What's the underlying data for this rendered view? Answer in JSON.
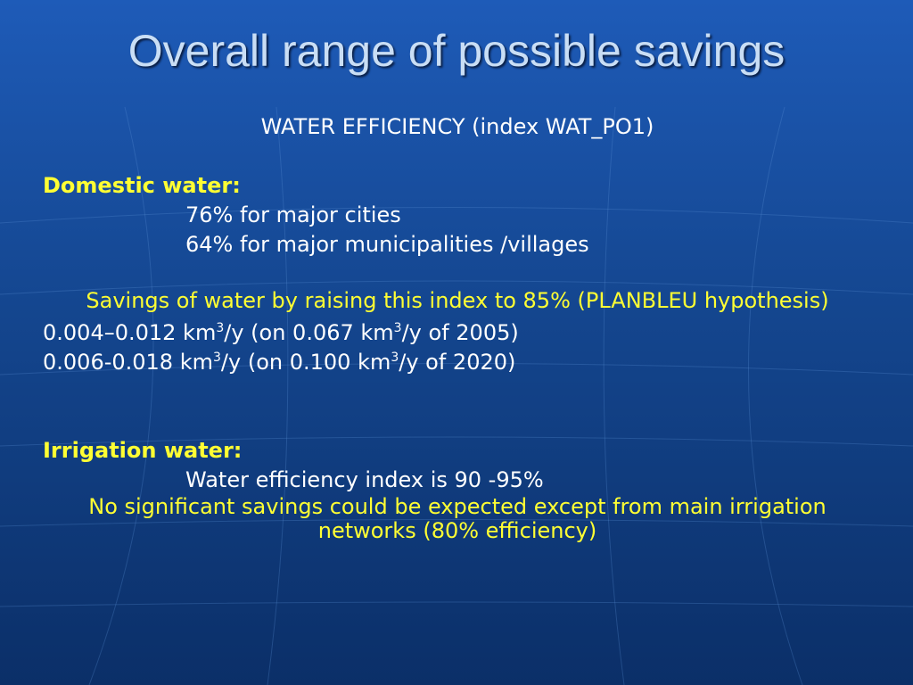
{
  "slide": {
    "title": "Overall range of possible savings",
    "subtitle": "WATER EFFICIENCY (index WAT_PO1)",
    "domestic": {
      "heading": "Domestic water:",
      "items": [
        "76% for major cities",
        "64% for major municipalities /villages"
      ],
      "savings_note": "Savings of water by raising this index to 85% (PLANBLEU hypothesis)",
      "ranges": [
        {
          "range": "0.004–0.012 km",
          "sup1": "3",
          "mid": "/y (on 0.067 km",
          "sup2": "3",
          "end": "/y of 2005)"
        },
        {
          "range": "0.006-0.018 km",
          "sup1": "3",
          "mid": "/y (on 0.100 km",
          "sup2": "3",
          "end": "/y of 2020)"
        }
      ]
    },
    "irrigation": {
      "heading": "Irrigation water:",
      "index_line": "Water efficiency index is 90 -95%",
      "note": "No significant savings could be expected except from main irrigation networks (80% efficiency)"
    }
  }
}
